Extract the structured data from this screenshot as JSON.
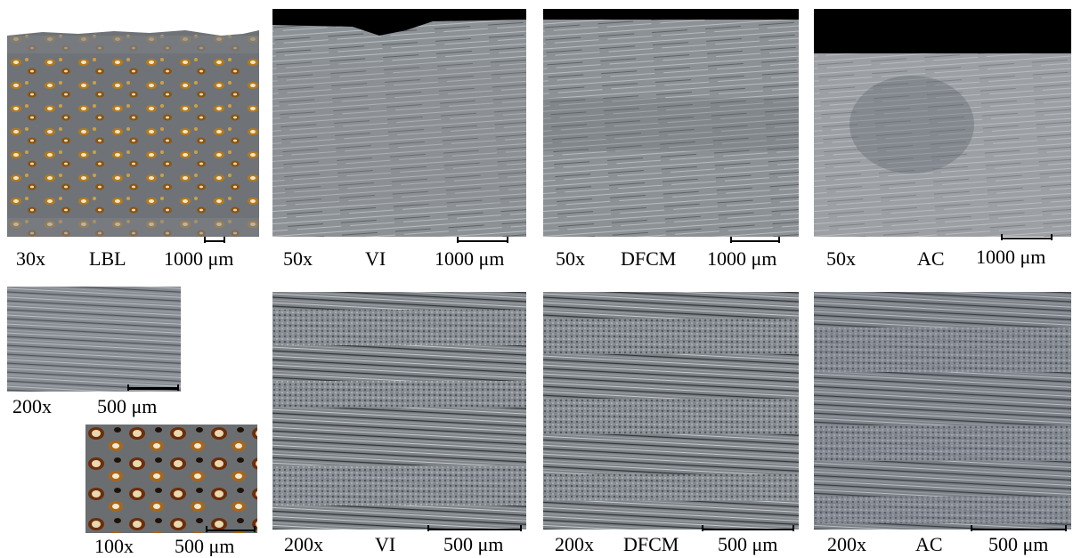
{
  "colors": {
    "background": "#ffffff",
    "caption_bg": "#ffffff",
    "caption_text": "#000000",
    "arrow": "#e3161b",
    "matrix_gray": "#8d9298",
    "void_amber": "#b47a1c"
  },
  "top_row": [
    {
      "mag": "30x",
      "method": "LBL",
      "scale": "1000 μm"
    },
    {
      "mag": "50x",
      "method": "VI",
      "scale": "1000 μm"
    },
    {
      "mag": "50x",
      "method": "DFCM",
      "scale": "1000 μm"
    },
    {
      "mag": "50x",
      "method": "AC",
      "scale": "1000 μm"
    }
  ],
  "lbl_insets": [
    {
      "mag": "200x",
      "scale": "500 μm"
    },
    {
      "mag": "100x",
      "scale": "500 μm"
    }
  ],
  "bottom_row": [
    {
      "mag": "200x",
      "method": "VI",
      "scale": "500 μm"
    },
    {
      "mag": "200x",
      "method": "DFCM",
      "scale": "500 μm"
    },
    {
      "mag": "200x",
      "method": "AC",
      "scale": "500 μm"
    }
  ]
}
